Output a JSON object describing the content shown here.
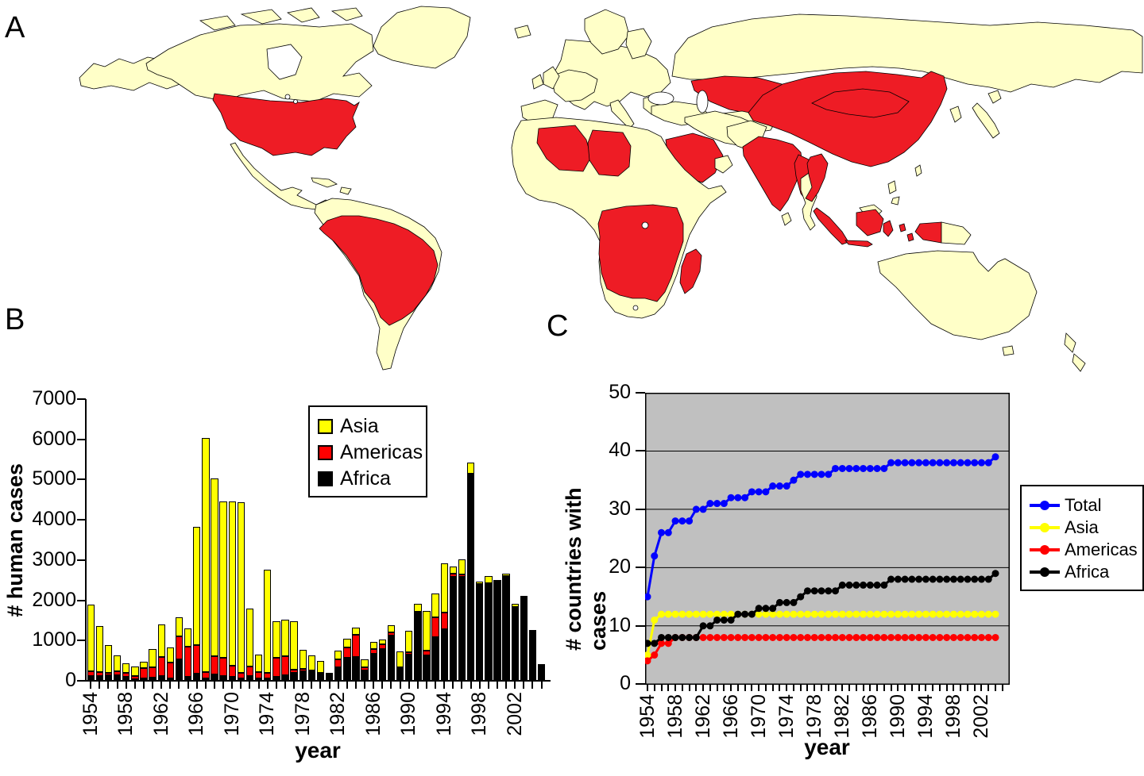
{
  "panels": {
    "a_label": "A",
    "b_label": "B",
    "c_label": "C"
  },
  "map": {
    "land_color": "#FFFFC8",
    "cases_color": "#EE1C25",
    "ocean_color": "#FFFFFF",
    "border_color": "#000000"
  },
  "chart_data": [
    {
      "id": "human-cases-by-year",
      "type": "bar",
      "stacked": true,
      "xlabel": "year",
      "ylabel": "# human cases",
      "ylim": [
        0,
        7000
      ],
      "yticks": [
        0,
        1000,
        2000,
        3000,
        4000,
        5000,
        6000,
        7000
      ],
      "xtick_labels": [
        "1954",
        "1958",
        "1962",
        "1966",
        "1970",
        "1974",
        "1978",
        "1982",
        "1986",
        "1990",
        "1994",
        "1998",
        "2002"
      ],
      "categories": [
        1954,
        1955,
        1956,
        1957,
        1958,
        1959,
        1960,
        1961,
        1962,
        1963,
        1964,
        1965,
        1966,
        1967,
        1968,
        1969,
        1970,
        1971,
        1972,
        1973,
        1974,
        1975,
        1976,
        1977,
        1978,
        1979,
        1980,
        1981,
        1982,
        1983,
        1984,
        1985,
        1986,
        1987,
        1988,
        1989,
        1990,
        1991,
        1992,
        1993,
        1994,
        1995,
        1996,
        1997,
        1998,
        1999,
        2000,
        2001,
        2002,
        2003,
        2004,
        2005
      ],
      "series": [
        {
          "name": "Africa",
          "color": "#000000",
          "values": [
            125,
            115,
            140,
            145,
            100,
            40,
            60,
            70,
            110,
            60,
            540,
            100,
            170,
            65,
            165,
            110,
            105,
            60,
            110,
            60,
            60,
            105,
            140,
            195,
            230,
            215,
            150,
            130,
            345,
            575,
            590,
            260,
            675,
            780,
            1130,
            290,
            650,
            1700,
            630,
            1080,
            1275,
            2575,
            2590,
            5140,
            2415,
            2425,
            2460,
            2600,
            1835,
            2110,
            1255,
            420
          ]
        },
        {
          "name": "Americas",
          "color": "#FF0000",
          "values": [
            115,
            110,
            65,
            90,
            90,
            70,
            265,
            270,
            475,
            395,
            570,
            750,
            720,
            145,
            440,
            455,
            265,
            130,
            245,
            150,
            140,
            460,
            480,
            85,
            65,
            45,
            45,
            45,
            180,
            245,
            545,
            85,
            110,
            120,
            80,
            45,
            65,
            15,
            120,
            490,
            430,
            95,
            55,
            5,
            0,
            0,
            0,
            0,
            0,
            0,
            0,
            0
          ]
        },
        {
          "name": "Asia",
          "color": "#FFFF00",
          "values": [
            1655,
            1135,
            685,
            400,
            245,
            245,
            140,
            440,
            820,
            375,
            460,
            460,
            2930,
            5820,
            4425,
            3885,
            4090,
            4240,
            1435,
            440,
            2560,
            920,
            890,
            1195,
            480,
            380,
            295,
            25,
            230,
            230,
            195,
            180,
            185,
            130,
            165,
            395,
            525,
            200,
            985,
            605,
            1215,
            170,
            375,
            275,
            45,
            180,
            45,
            70,
            80,
            0,
            0,
            0
          ]
        }
      ],
      "legend": [
        "Asia",
        "Americas",
        "Africa"
      ],
      "legend_colors": [
        "#FFFF00",
        "#FF0000",
        "#000000"
      ],
      "legend_position": "top-center"
    },
    {
      "id": "countries-with-cases-by-year",
      "type": "line",
      "xlabel": "year",
      "ylabel": "# countries with cases",
      "ylim": [
        0,
        50
      ],
      "yticks": [
        0,
        10,
        20,
        30,
        40,
        50
      ],
      "grid": true,
      "plot_bg": "#C0C0C0",
      "xtick_labels": [
        "1954",
        "1958",
        "1962",
        "1966",
        "1970",
        "1974",
        "1978",
        "1982",
        "1986",
        "1990",
        "1994",
        "1998",
        "2002"
      ],
      "x": [
        1954,
        1955,
        1956,
        1957,
        1958,
        1959,
        1960,
        1961,
        1962,
        1963,
        1964,
        1965,
        1966,
        1967,
        1968,
        1969,
        1970,
        1971,
        1972,
        1973,
        1974,
        1975,
        1976,
        1977,
        1978,
        1979,
        1980,
        1981,
        1982,
        1983,
        1984,
        1985,
        1986,
        1987,
        1988,
        1989,
        1990,
        1991,
        1992,
        1993,
        1994,
        1995,
        1996,
        1997,
        1998,
        1999,
        2000,
        2001,
        2002,
        2003,
        2004
      ],
      "series": [
        {
          "name": "Total",
          "color": "#0000FF",
          "values": [
            15,
            22,
            26,
            26,
            28,
            28,
            28,
            30,
            30,
            31,
            31,
            31,
            32,
            32,
            32,
            33,
            33,
            33,
            34,
            34,
            34,
            35,
            36,
            36,
            36,
            36,
            36,
            37,
            37,
            37,
            37,
            37,
            37,
            37,
            37,
            38,
            38,
            38,
            38,
            38,
            38,
            38,
            38,
            38,
            38,
            38,
            38,
            38,
            38,
            38,
            39
          ]
        },
        {
          "name": "Asia",
          "color": "#FFFF00",
          "values": [
            5,
            11,
            12,
            12,
            12,
            12,
            12,
            12,
            12,
            12,
            12,
            12,
            12,
            12,
            12,
            12,
            12,
            12,
            12,
            12,
            12,
            12,
            12,
            12,
            12,
            12,
            12,
            12,
            12,
            12,
            12,
            12,
            12,
            12,
            12,
            12,
            12,
            12,
            12,
            12,
            12,
            12,
            12,
            12,
            12,
            12,
            12,
            12,
            12,
            12,
            12
          ]
        },
        {
          "name": "Americas",
          "color": "#FF0000",
          "values": [
            4,
            5,
            7,
            7,
            8,
            8,
            8,
            8,
            8,
            8,
            8,
            8,
            8,
            8,
            8,
            8,
            8,
            8,
            8,
            8,
            8,
            8,
            8,
            8,
            8,
            8,
            8,
            8,
            8,
            8,
            8,
            8,
            8,
            8,
            8,
            8,
            8,
            8,
            8,
            8,
            8,
            8,
            8,
            8,
            8,
            8,
            8,
            8,
            8,
            8,
            8
          ]
        },
        {
          "name": "Africa",
          "color": "#000000",
          "values": [
            7,
            7,
            8,
            8,
            8,
            8,
            8,
            8,
            10,
            10,
            11,
            11,
            11,
            12,
            12,
            12,
            13,
            13,
            13,
            14,
            14,
            14,
            15,
            16,
            16,
            16,
            16,
            16,
            17,
            17,
            17,
            17,
            17,
            17,
            17,
            18,
            18,
            18,
            18,
            18,
            18,
            18,
            18,
            18,
            18,
            18,
            18,
            18,
            18,
            18,
            19
          ]
        }
      ],
      "legend": [
        "Total",
        "Asia",
        "Americas",
        "Africa"
      ],
      "legend_colors": [
        "#0000FF",
        "#FFFF00",
        "#FF0000",
        "#000000"
      ],
      "legend_position": "right"
    }
  ]
}
